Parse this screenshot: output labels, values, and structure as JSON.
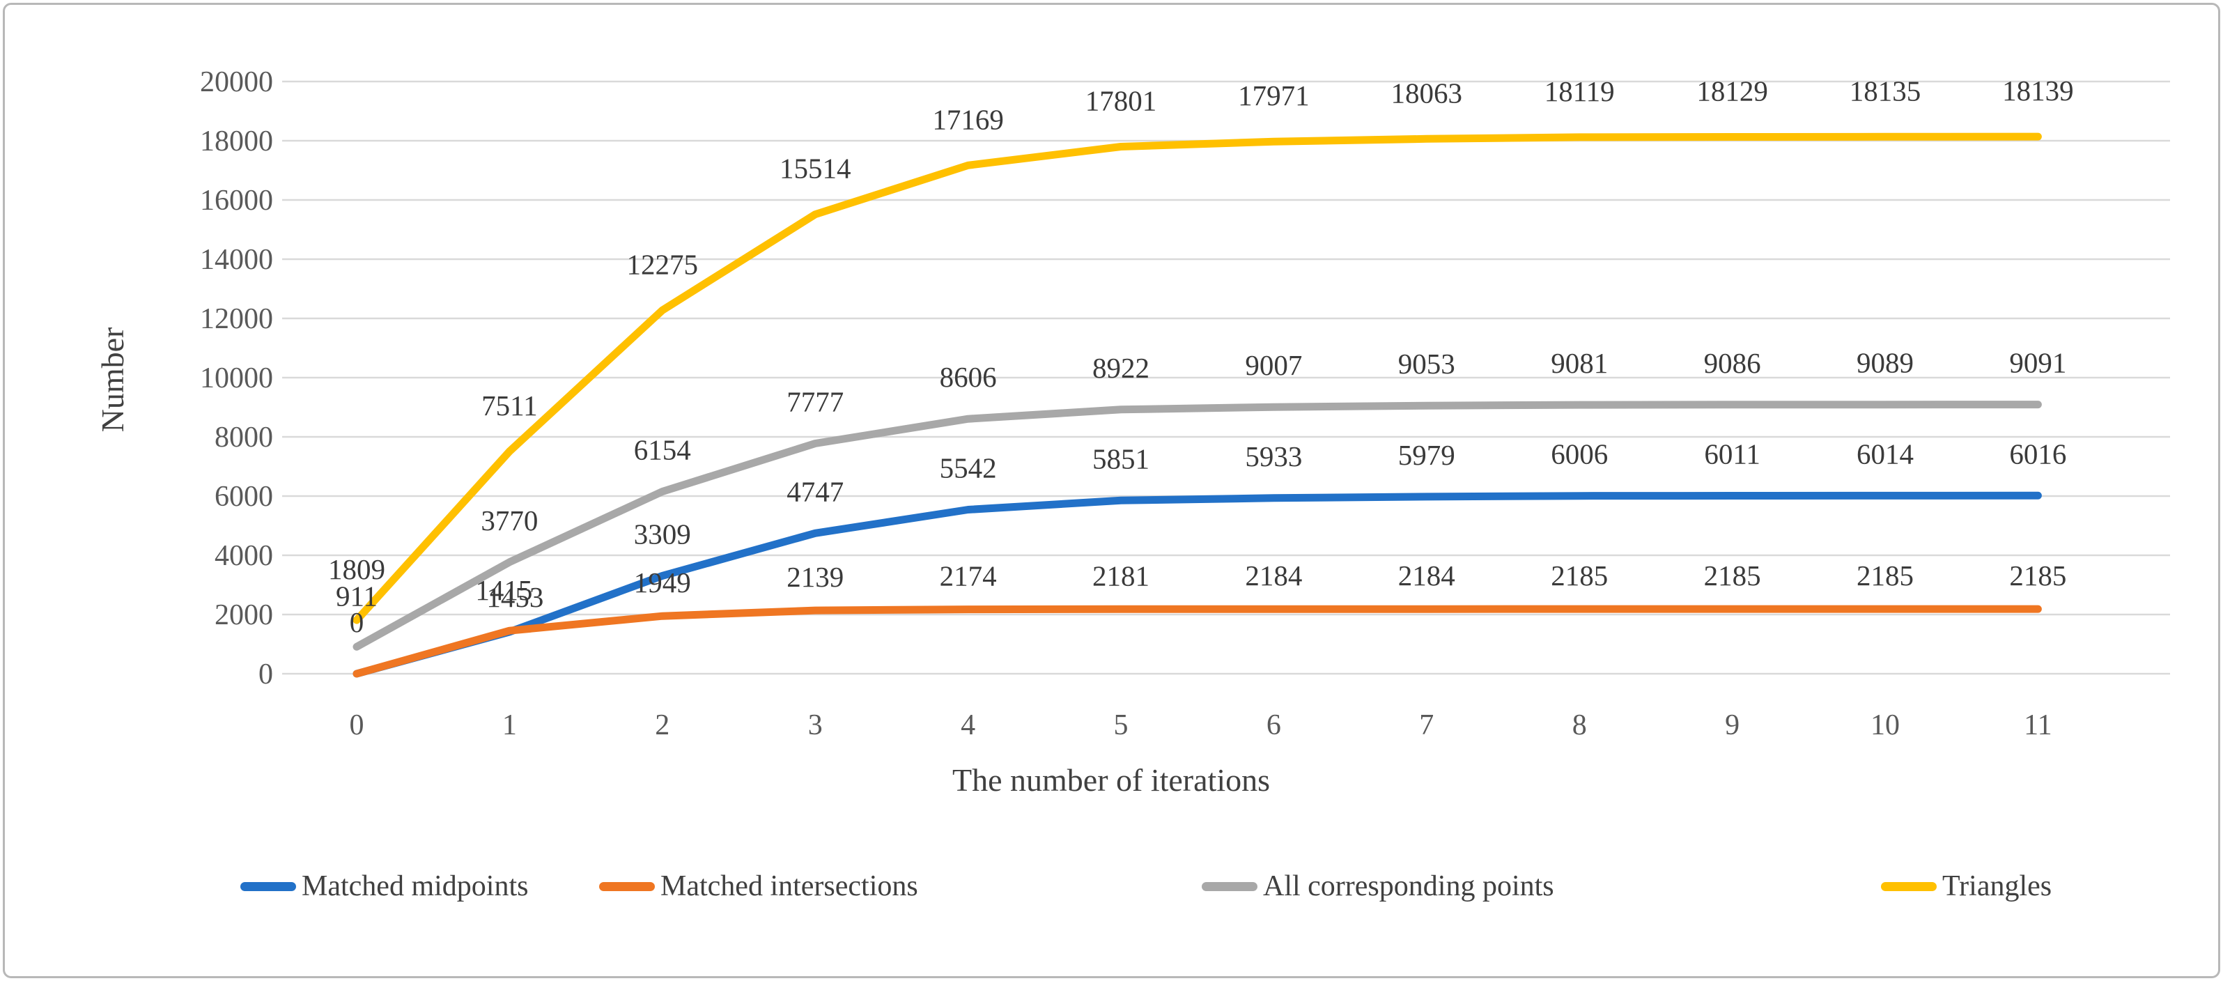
{
  "figure": {
    "background": "#ffffff",
    "border_color": "#b8b8b8"
  },
  "chart_data": {
    "type": "line",
    "title": "",
    "xlabel": "The number of iterations",
    "ylabel": "Number",
    "x": [
      0,
      1,
      2,
      3,
      4,
      5,
      6,
      7,
      8,
      9,
      10,
      11
    ],
    "x_tick_labels": [
      "0",
      "1",
      "2",
      "3",
      "4",
      "5",
      "6",
      "7",
      "8",
      "9",
      "10",
      "11"
    ],
    "ylim": [
      0,
      20000
    ],
    "y_ticks": [
      0,
      2000,
      4000,
      6000,
      8000,
      10000,
      12000,
      14000,
      16000,
      18000,
      20000
    ],
    "y_tick_labels": [
      "0",
      "2000",
      "4000",
      "6000",
      "8000",
      "10000",
      "12000",
      "14000",
      "16000",
      "18000",
      "20000"
    ],
    "grid": true,
    "legend_position": "bottom",
    "series": [
      {
        "name": "Matched midpoints",
        "color": "#2271C8",
        "values": [
          0,
          1415,
          3309,
          4747,
          5542,
          5851,
          5933,
          5979,
          6006,
          6011,
          6014,
          6016
        ],
        "labels": [
          "0",
          "1415",
          "3309",
          "4747",
          "5542",
          "5851",
          "5933",
          "5979",
          "6006",
          "6011",
          "6014",
          "6016"
        ]
      },
      {
        "name": "Matched intersections",
        "color": "#EF7622",
        "values": [
          0,
          1453,
          1949,
          2139,
          2174,
          2181,
          2184,
          2184,
          2185,
          2185,
          2185,
          2185
        ],
        "labels": [
          "",
          "1453",
          "1949",
          "2139",
          "2174",
          "2181",
          "2184",
          "2184",
          "2185",
          "2185",
          "2185",
          "2185"
        ]
      },
      {
        "name": "All corresponding points",
        "color": "#A8A8A8",
        "values": [
          911,
          3770,
          6154,
          7777,
          8606,
          8922,
          9007,
          9053,
          9081,
          9086,
          9089,
          9091
        ],
        "labels": [
          "911",
          "3770",
          "6154",
          "7777",
          "8606",
          "8922",
          "9007",
          "9053",
          "9081",
          "9086",
          "9089",
          "9091"
        ]
      },
      {
        "name": "Triangles",
        "color": "#FFC000",
        "values": [
          1809,
          7511,
          12275,
          15514,
          17169,
          17801,
          17971,
          18063,
          18119,
          18129,
          18135,
          18139
        ],
        "labels": [
          "1809",
          "7511",
          "12275",
          "15514",
          "17169",
          "17801",
          "17971",
          "18063",
          "18119",
          "18129",
          "18135",
          "18139"
        ]
      }
    ]
  }
}
